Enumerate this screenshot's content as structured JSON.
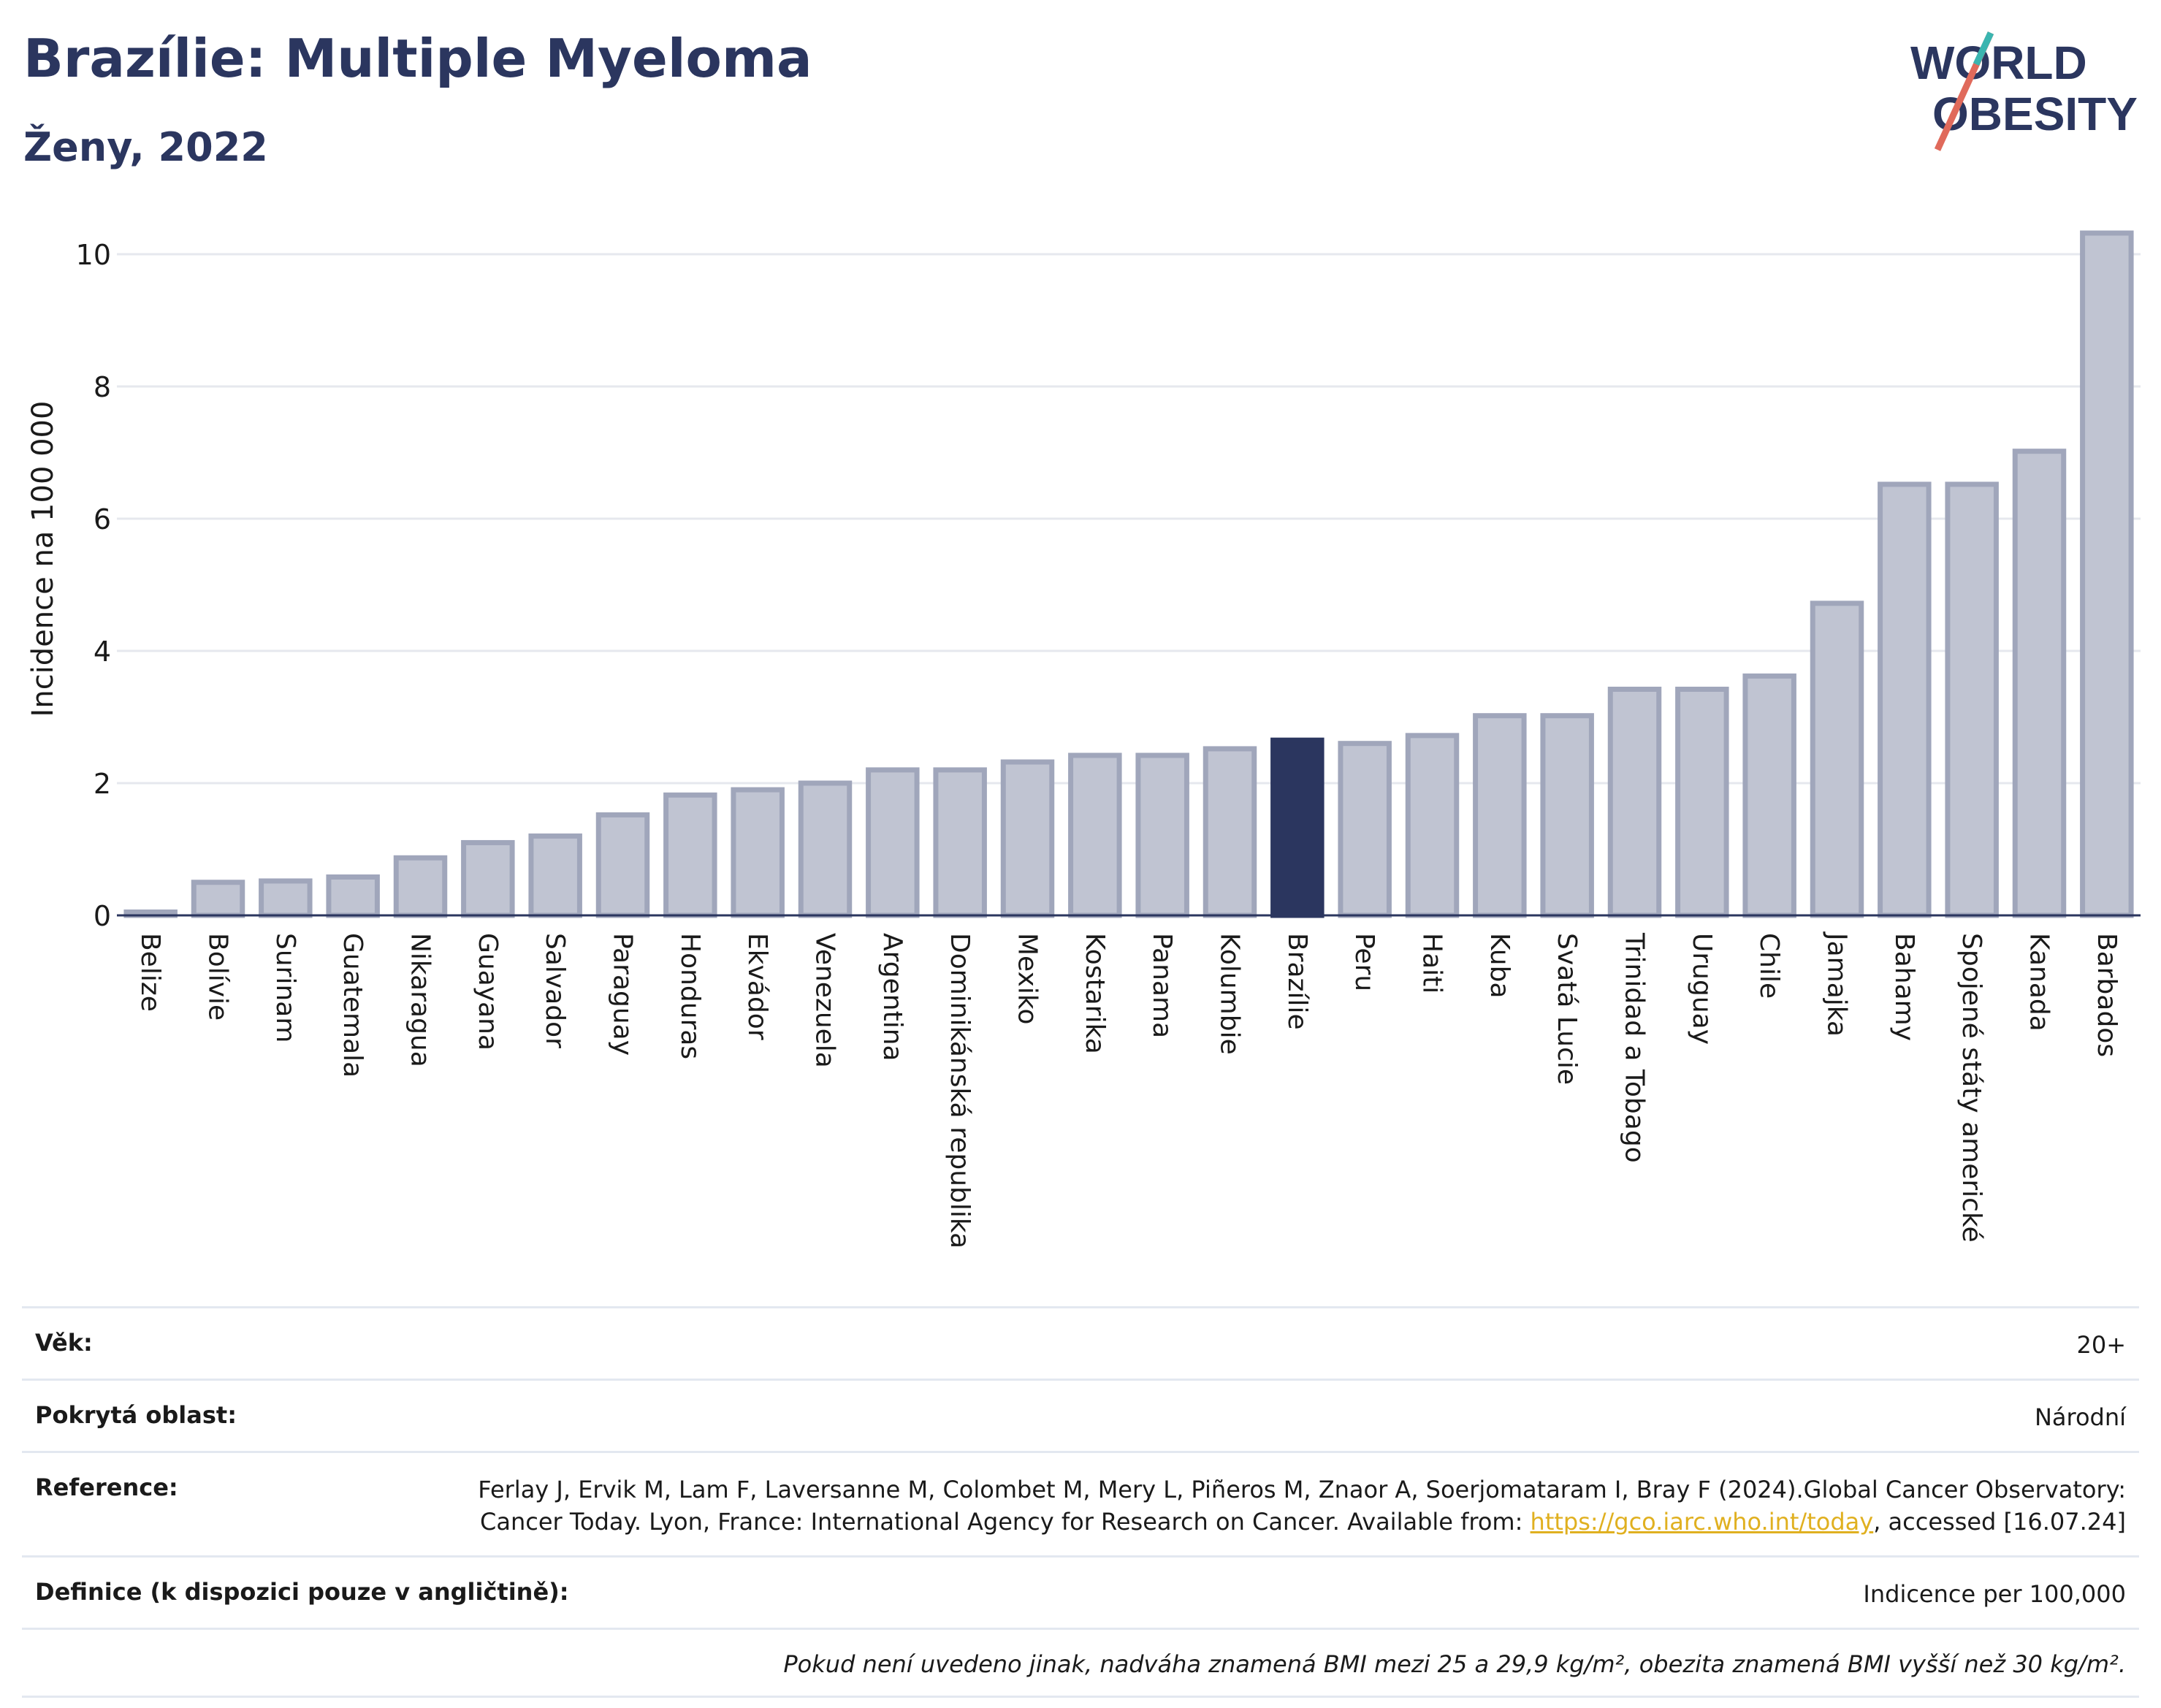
{
  "header": {
    "title": "Brazílie: Multiple Myeloma",
    "subtitle": "Ženy, 2022"
  },
  "logo": {
    "line1": "WORLD",
    "line2": "OBESITY"
  },
  "colors": {
    "bar": "#c0c4d2",
    "bar_stroke": "#a0a6bb",
    "highlight": "#2b365f",
    "grid": "#e6e8ee"
  },
  "chart_data": {
    "type": "bar",
    "ylabel": "Incidence na 100 000",
    "ylim": [
      0,
      10.5
    ],
    "yticks": [
      0,
      2,
      4,
      6,
      8,
      10
    ],
    "grid": true,
    "highlight": "Brazílie",
    "categories": [
      "Belize",
      "Bolívie",
      "Surinam",
      "Guatemala",
      "Nikaragua",
      "Guayana",
      "Salvador",
      "Paraguay",
      "Honduras",
      "Ekvádor",
      "Venezuela",
      "Argentina",
      "Dominikánská republika",
      "Mexiko",
      "Kostarika",
      "Panama",
      "Kolumbie",
      "Brazílie",
      "Peru",
      "Haiti",
      "Kuba",
      "Svatá Lucie",
      "Trinidad a Tobago",
      "Uruguay",
      "Chile",
      "Jamajka",
      "Bahamy",
      "Spojené státy americké",
      "Kanada",
      "Barbados"
    ],
    "values": [
      0.05,
      0.5,
      0.52,
      0.58,
      0.87,
      1.1,
      1.2,
      1.52,
      1.82,
      1.9,
      2.0,
      2.2,
      2.2,
      2.32,
      2.42,
      2.42,
      2.52,
      2.65,
      2.6,
      2.72,
      3.02,
      3.02,
      3.42,
      3.42,
      3.62,
      4.72,
      6.52,
      6.52,
      7.02,
      10.32
    ]
  },
  "info": {
    "age_label": "Věk:",
    "age_value": "20+",
    "area_label": "Pokrytá oblast:",
    "area_value": "Národní",
    "ref_label": "Reference:",
    "ref_text_1": "Ferlay J, Ervik M, Lam F, Laversanne M, Colombet M, Mery L, Piñeros M, Znaor A, Soerjomataram I, Bray F (2024).Global Cancer Observatory: Cancer Today. Lyon, France: International Agency for Research on Cancer. Available from: ",
    "ref_link": "https://gco.iarc.who.int/today",
    "ref_text_2": ", accessed [16.07.24]",
    "def_label": "Definice (k dispozici pouze v angličtině):",
    "def_value": "Indicence per 100,000",
    "note": "Pokud není uvedeno jinak, nadváha znamená BMI mezi 25 a 29,9 kg/m², obezita znamená BMI vyšší než 30 kg/m²."
  }
}
